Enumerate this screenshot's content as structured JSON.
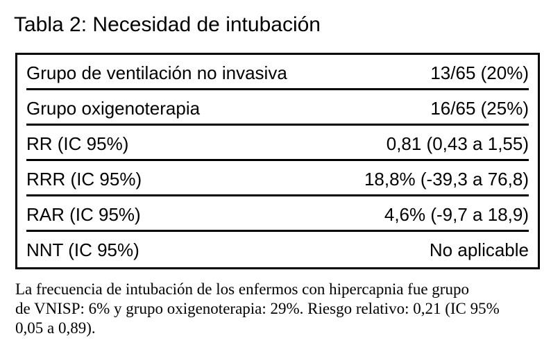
{
  "title": "Tabla 2: Necesidad de intubación",
  "table": {
    "rows": [
      {
        "label": "Grupo de ventilación no invasiva",
        "value": "13/65 (20%)"
      },
      {
        "label": "Grupo oxigenoterapia",
        "value": "16/65 (25%)"
      },
      {
        "label": "RR (IC 95%)",
        "value": "0,81 (0,43 a 1,55)"
      },
      {
        "label": "RRR (IC 95%)",
        "value": "18,8% (-39,3 a 76,8)"
      },
      {
        "label": "RAR (IC 95%)",
        "value": "4,6% (-9,7 a 18,9)"
      },
      {
        "label": "NNT (IC 95%)",
        "value": "No aplicable"
      }
    ]
  },
  "footnote": {
    "lines": [
      "La frecuencia de intubación de los enfermos con hipercapnia fue grupo",
      "de VNISP: 6% y grupo oxigenoterapia: 29%. Riesgo relativo: 0,21 (IC 95%",
      "0,05 a 0,89)."
    ]
  },
  "colors": {
    "text": "#000000",
    "background": "#ffffff",
    "border": "#000000"
  }
}
